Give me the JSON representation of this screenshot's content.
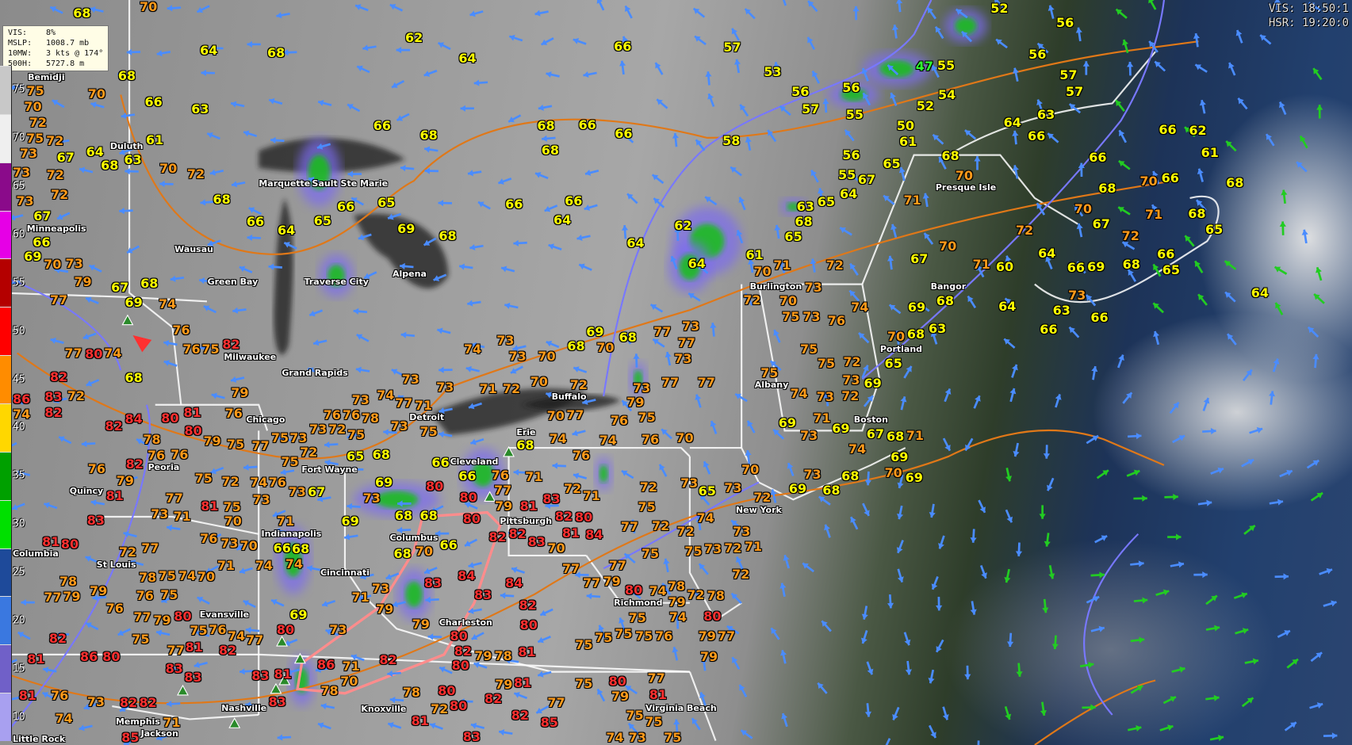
{
  "info_box": {
    "rows": [
      {
        "key": "VIS:",
        "value": "8%"
      },
      {
        "key": "MSLP:",
        "value": "1008.7 mb"
      },
      {
        "key": "10MW:",
        "value": "3 kts @ 174°"
      },
      {
        "key": "500H:",
        "value": "5727.8 m"
      }
    ]
  },
  "timestamps": {
    "vis": "VIS: 18:50:1",
    "hsr": "HSR: 19:20:0"
  },
  "color_bar": {
    "ticks": [
      "75",
      "70",
      "65",
      "60",
      "55",
      "50",
      "45",
      "40",
      "35",
      "30",
      "25",
      "20",
      "15",
      "10"
    ],
    "segments": [
      "#c8c8c8",
      "#efefef",
      "#8a0a8a",
      "#e600e6",
      "#b40000",
      "#ff0000",
      "#ff8c00",
      "#ffd700",
      "#00a000",
      "#00e000",
      "#1e4a9a",
      "#3a78e0",
      "#7060c8",
      "#a8a0f0"
    ]
  },
  "colors": {
    "temp_50s_60s": "#ffff00",
    "temp_70s": "#ff9a1a",
    "temp_80s": "#ff3030",
    "temp_40s": "#30ff30",
    "front_warm": "#e07818",
    "front_cold": "#7878ff",
    "wind_arrow": "#4a8cff",
    "wind_arrow_green": "#22cc22"
  },
  "temperatures": [
    68,
    70,
    68,
    64,
    62,
    64,
    66,
    57,
    52,
    56,
    56,
    57,
    57,
    53,
    56,
    56,
    57,
    55,
    47,
    55,
    54,
    52,
    50,
    61,
    58,
    66,
    66,
    68,
    68,
    68,
    66,
    75,
    70,
    70,
    68,
    66,
    63,
    61,
    63,
    64,
    68,
    70,
    72,
    68,
    66,
    64,
    65,
    66,
    65,
    69,
    68,
    66,
    64,
    66,
    64,
    62,
    64,
    61,
    63,
    68,
    65,
    65,
    64,
    67,
    65,
    56,
    55,
    68,
    70,
    71,
    64,
    63,
    66,
    66,
    66,
    62,
    61,
    68,
    66,
    70,
    68,
    70,
    72,
    70,
    67,
    71,
    60,
    64,
    67,
    72,
    71,
    68,
    65,
    64,
    66,
    65,
    68,
    69,
    66,
    73,
    66,
    63,
    66,
    64,
    68,
    69,
    68,
    70,
    63,
    65,
    72,
    71,
    70,
    72,
    70,
    73,
    75,
    73,
    76,
    74,
    75,
    75,
    72,
    73,
    69,
    72,
    73,
    74,
    75,
    69,
    73,
    69,
    71,
    67,
    74,
    68,
    71,
    69,
    69,
    70,
    68,
    68,
    69,
    73,
    72,
    70,
    73,
    65,
    73,
    72,
    75,
    73,
    72,
    67,
    73,
    72,
    72,
    73,
    67,
    66,
    69,
    70,
    73,
    79,
    77,
    77,
    80,
    82,
    86,
    83,
    82,
    74,
    72,
    74,
    68,
    67,
    69,
    68,
    74,
    76,
    76,
    75,
    82,
    84,
    82,
    80,
    81,
    79,
    80,
    79,
    76,
    77,
    75,
    73,
    73,
    72,
    75,
    76,
    76,
    78,
    73,
    74,
    73,
    71,
    75,
    77,
    73,
    73,
    74,
    73,
    73,
    70,
    68,
    69,
    70,
    68,
    77,
    77,
    73,
    73,
    77,
    77,
    73,
    79,
    75,
    76,
    72,
    77,
    70,
    70,
    72,
    71,
    74,
    76,
    74,
    76,
    70,
    68,
    66,
    66,
    80,
    80,
    76,
    77,
    71,
    72,
    71,
    72,
    75,
    72,
    72,
    74,
    75,
    75,
    77,
    84,
    81,
    82,
    81,
    82,
    82,
    80,
    66,
    70,
    68,
    68,
    68,
    69,
    73,
    69,
    68,
    65,
    67,
    71,
    66,
    68,
    74,
    74,
    70,
    73,
    70,
    71,
    70,
    74,
    75,
    75,
    77,
    72,
    76,
    77,
    79,
    78,
    79,
    76,
    78,
    79,
    77,
    81,
    80,
    83,
    81,
    79,
    76,
    82,
    76,
    78,
    76,
    77,
    73,
    71,
    81,
    76,
    75,
    72,
    74,
    73,
    76,
    73,
    75,
    75,
    75,
    72,
    74,
    76,
    75,
    80,
    81,
    82,
    77,
    75,
    77,
    83,
    83,
    80,
    86,
    82,
    81,
    81,
    76,
    74,
    73,
    82,
    82,
    85,
    71,
    83,
    81,
    83,
    86,
    78,
    70,
    71,
    80,
    69,
    73,
    71,
    79,
    73,
    82,
    78,
    81,
    80,
    72,
    80,
    80,
    80,
    82,
    79,
    83,
    84,
    83,
    84,
    83,
    83,
    80,
    79,
    82,
    70,
    80,
    79,
    78,
    81,
    81,
    79,
    82,
    82,
    85,
    83,
    77,
    75,
    77,
    77,
    79,
    77,
    80,
    75,
    75,
    75,
    75,
    75,
    76,
    74,
    78,
    79,
    72,
    74,
    78,
    80,
    79,
    77,
    79,
    77,
    80,
    79,
    81,
    75,
    75,
    73,
    74,
    75,
    72,
    72,
    73,
    71,
    73
  ],
  "cities": [
    "Bemidji",
    "Duluth",
    "Minneapolis",
    "Marquette",
    "Sault Ste Marie",
    "Wausau",
    "Green Bay",
    "Traverse City",
    "Alpena",
    "Milwaukee",
    "Grand Rapids",
    "Chicago",
    "Detroit",
    "Fort Wayne",
    "Cleveland",
    "Erie",
    "Buffalo",
    "Burlington",
    "Portland",
    "Bangor",
    "Presque Isle",
    "Albany",
    "Boston",
    "New York",
    "Pittsburgh",
    "Columbus",
    "Indianapolis",
    "Cincinnati",
    "Charleston",
    "Peoria",
    "Quincy",
    "Columbia",
    "St Louis",
    "Evansville",
    "Nashville",
    "Knoxville",
    "Memphis",
    "Jackson",
    "Little Rock",
    "Virginia Beach",
    "Richmond"
  ]
}
